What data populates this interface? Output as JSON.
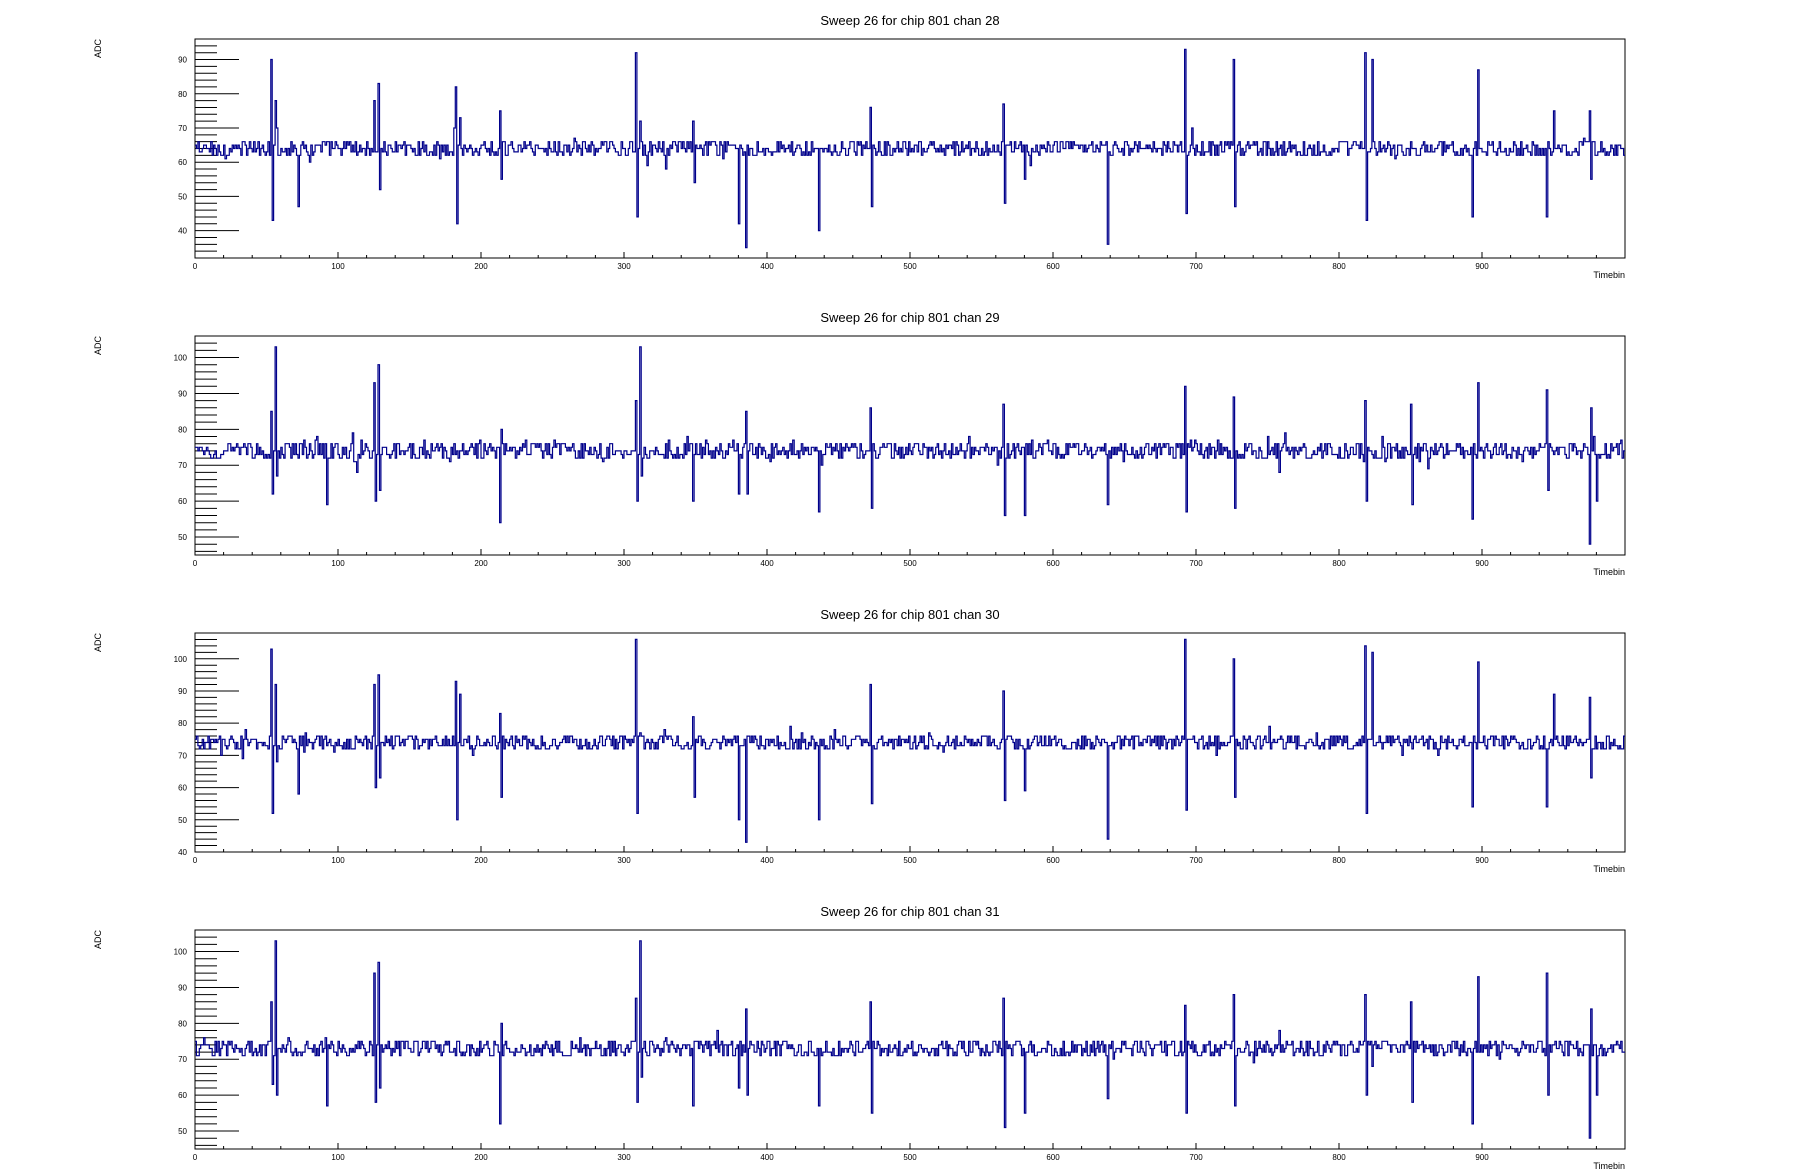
{
  "chart_data": [
    {
      "type": "line",
      "title": "Sweep 26 for chip 801 chan 28",
      "xlabel": "Timebin",
      "ylabel": "ADC",
      "xlim": [
        0,
        1000
      ],
      "ylim": [
        32,
        96
      ],
      "x_ticks": [
        0,
        100,
        200,
        300,
        400,
        500,
        600,
        700,
        800,
        900
      ],
      "y_ticks": [
        40,
        50,
        60,
        70,
        80,
        90
      ],
      "baseline": 64,
      "noise": 1.5,
      "spikes": [
        {
          "x": 53,
          "values": [
            90,
            43
          ]
        },
        {
          "x": 56,
          "values": [
            78,
            70
          ]
        },
        {
          "x": 72,
          "values": [
            47
          ]
        },
        {
          "x": 125,
          "values": [
            78
          ]
        },
        {
          "x": 128,
          "values": [
            83,
            52
          ]
        },
        {
          "x": 182,
          "values": [
            82,
            42
          ]
        },
        {
          "x": 185,
          "values": [
            73
          ]
        },
        {
          "x": 213,
          "values": [
            75,
            55
          ]
        },
        {
          "x": 308,
          "values": [
            92,
            44
          ]
        },
        {
          "x": 311,
          "values": [
            72
          ]
        },
        {
          "x": 348,
          "values": [
            72,
            54
          ]
        },
        {
          "x": 380,
          "values": [
            42
          ]
        },
        {
          "x": 385,
          "values": [
            35
          ]
        },
        {
          "x": 436,
          "values": [
            40
          ]
        },
        {
          "x": 472,
          "values": [
            76,
            47
          ]
        },
        {
          "x": 565,
          "values": [
            77,
            48
          ]
        },
        {
          "x": 580,
          "values": [
            55
          ]
        },
        {
          "x": 638,
          "values": [
            36
          ]
        },
        {
          "x": 692,
          "values": [
            93,
            45
          ]
        },
        {
          "x": 697,
          "values": [
            70
          ]
        },
        {
          "x": 726,
          "values": [
            90,
            47
          ]
        },
        {
          "x": 818,
          "values": [
            92,
            43
          ]
        },
        {
          "x": 823,
          "values": [
            90
          ]
        },
        {
          "x": 893,
          "values": [
            44
          ]
        },
        {
          "x": 897,
          "values": [
            87
          ]
        },
        {
          "x": 945,
          "values": [
            44
          ]
        },
        {
          "x": 950,
          "values": [
            75
          ]
        },
        {
          "x": 975,
          "values": [
            75,
            55
          ]
        }
      ]
    },
    {
      "type": "line",
      "title": "Sweep 26 for chip 801 chan 29",
      "xlabel": "Timebin",
      "ylabel": "ADC",
      "xlim": [
        0,
        1000
      ],
      "ylim": [
        45,
        106
      ],
      "x_ticks": [
        0,
        100,
        200,
        300,
        400,
        500,
        600,
        700,
        800,
        900
      ],
      "y_ticks": [
        50,
        60,
        70,
        80,
        90,
        100
      ],
      "baseline": 74,
      "noise": 1.6,
      "spikes": [
        {
          "x": 53,
          "values": [
            85,
            62
          ]
        },
        {
          "x": 56,
          "values": [
            103,
            67
          ]
        },
        {
          "x": 92,
          "values": [
            59
          ]
        },
        {
          "x": 125,
          "values": [
            93,
            60
          ]
        },
        {
          "x": 128,
          "values": [
            98,
            63
          ]
        },
        {
          "x": 213,
          "values": [
            54,
            80
          ]
        },
        {
          "x": 308,
          "values": [
            88,
            60
          ]
        },
        {
          "x": 311,
          "values": [
            103,
            67
          ]
        },
        {
          "x": 348,
          "values": [
            60
          ]
        },
        {
          "x": 380,
          "values": [
            62
          ]
        },
        {
          "x": 385,
          "values": [
            85,
            62
          ]
        },
        {
          "x": 436,
          "values": [
            57
          ]
        },
        {
          "x": 472,
          "values": [
            86,
            58
          ]
        },
        {
          "x": 565,
          "values": [
            87,
            56
          ]
        },
        {
          "x": 580,
          "values": [
            56
          ]
        },
        {
          "x": 638,
          "values": [
            59
          ]
        },
        {
          "x": 692,
          "values": [
            92,
            57
          ]
        },
        {
          "x": 726,
          "values": [
            89,
            58
          ]
        },
        {
          "x": 818,
          "values": [
            88,
            60
          ]
        },
        {
          "x": 850,
          "values": [
            87,
            59
          ]
        },
        {
          "x": 893,
          "values": [
            55
          ]
        },
        {
          "x": 897,
          "values": [
            93
          ]
        },
        {
          "x": 945,
          "values": [
            91,
            63
          ]
        },
        {
          "x": 975,
          "values": [
            48,
            86
          ]
        },
        {
          "x": 980,
          "values": [
            60
          ]
        }
      ]
    },
    {
      "type": "line",
      "title": "Sweep 26 for chip 801 chan 30",
      "xlabel": "Timebin",
      "ylabel": "ADC",
      "xlim": [
        0,
        1000
      ],
      "ylim": [
        40,
        108
      ],
      "x_ticks": [
        0,
        100,
        200,
        300,
        400,
        500,
        600,
        700,
        800,
        900
      ],
      "y_ticks": [
        40,
        50,
        60,
        70,
        80,
        90,
        100
      ],
      "baseline": 74,
      "noise": 1.5,
      "spikes": [
        {
          "x": 53,
          "values": [
            103,
            52
          ]
        },
        {
          "x": 56,
          "values": [
            92,
            68
          ]
        },
        {
          "x": 72,
          "values": [
            58
          ]
        },
        {
          "x": 125,
          "values": [
            92,
            60
          ]
        },
        {
          "x": 128,
          "values": [
            95,
            63
          ]
        },
        {
          "x": 182,
          "values": [
            93,
            50
          ]
        },
        {
          "x": 185,
          "values": [
            89
          ]
        },
        {
          "x": 213,
          "values": [
            83,
            57
          ]
        },
        {
          "x": 308,
          "values": [
            106,
            52
          ]
        },
        {
          "x": 311,
          "values": [
            77
          ]
        },
        {
          "x": 348,
          "values": [
            82,
            57
          ]
        },
        {
          "x": 380,
          "values": [
            50
          ]
        },
        {
          "x": 385,
          "values": [
            43
          ]
        },
        {
          "x": 436,
          "values": [
            50
          ]
        },
        {
          "x": 472,
          "values": [
            92,
            55
          ]
        },
        {
          "x": 565,
          "values": [
            90,
            56
          ]
        },
        {
          "x": 580,
          "values": [
            59
          ]
        },
        {
          "x": 638,
          "values": [
            44
          ]
        },
        {
          "x": 692,
          "values": [
            106,
            53
          ]
        },
        {
          "x": 726,
          "values": [
            100,
            57
          ]
        },
        {
          "x": 818,
          "values": [
            104,
            52
          ]
        },
        {
          "x": 823,
          "values": [
            102
          ]
        },
        {
          "x": 893,
          "values": [
            54
          ]
        },
        {
          "x": 897,
          "values": [
            99
          ]
        },
        {
          "x": 945,
          "values": [
            54
          ]
        },
        {
          "x": 950,
          "values": [
            89
          ]
        },
        {
          "x": 975,
          "values": [
            88,
            63
          ]
        }
      ]
    },
    {
      "type": "line",
      "title": "Sweep 26 for chip 801 chan 31",
      "xlabel": "Timebin",
      "ylabel": "ADC",
      "xlim": [
        0,
        1000
      ],
      "ylim": [
        45,
        106
      ],
      "x_ticks": [
        0,
        100,
        200,
        300,
        400,
        500,
        600,
        700,
        800,
        900
      ],
      "y_ticks": [
        50,
        60,
        70,
        80,
        90,
        100
      ],
      "baseline": 73,
      "noise": 1.5,
      "spikes": [
        {
          "x": 53,
          "values": [
            86,
            63
          ]
        },
        {
          "x": 56,
          "values": [
            103,
            60
          ]
        },
        {
          "x": 92,
          "values": [
            57
          ]
        },
        {
          "x": 125,
          "values": [
            94,
            58
          ]
        },
        {
          "x": 128,
          "values": [
            97,
            62
          ]
        },
        {
          "x": 213,
          "values": [
            52,
            80
          ]
        },
        {
          "x": 308,
          "values": [
            87,
            58
          ]
        },
        {
          "x": 311,
          "values": [
            103,
            65
          ]
        },
        {
          "x": 348,
          "values": [
            57
          ]
        },
        {
          "x": 380,
          "values": [
            62
          ]
        },
        {
          "x": 385,
          "values": [
            84,
            60
          ]
        },
        {
          "x": 436,
          "values": [
            57
          ]
        },
        {
          "x": 472,
          "values": [
            86,
            55
          ]
        },
        {
          "x": 565,
          "values": [
            87,
            51
          ]
        },
        {
          "x": 580,
          "values": [
            55
          ]
        },
        {
          "x": 638,
          "values": [
            59
          ]
        },
        {
          "x": 692,
          "values": [
            85,
            55
          ]
        },
        {
          "x": 726,
          "values": [
            88,
            57
          ]
        },
        {
          "x": 818,
          "values": [
            88,
            60
          ]
        },
        {
          "x": 850,
          "values": [
            86,
            58
          ]
        },
        {
          "x": 893,
          "values": [
            52
          ]
        },
        {
          "x": 897,
          "values": [
            93
          ]
        },
        {
          "x": 945,
          "values": [
            94,
            60
          ]
        },
        {
          "x": 975,
          "values": [
            48,
            84
          ]
        },
        {
          "x": 980,
          "values": [
            60
          ]
        }
      ]
    }
  ]
}
